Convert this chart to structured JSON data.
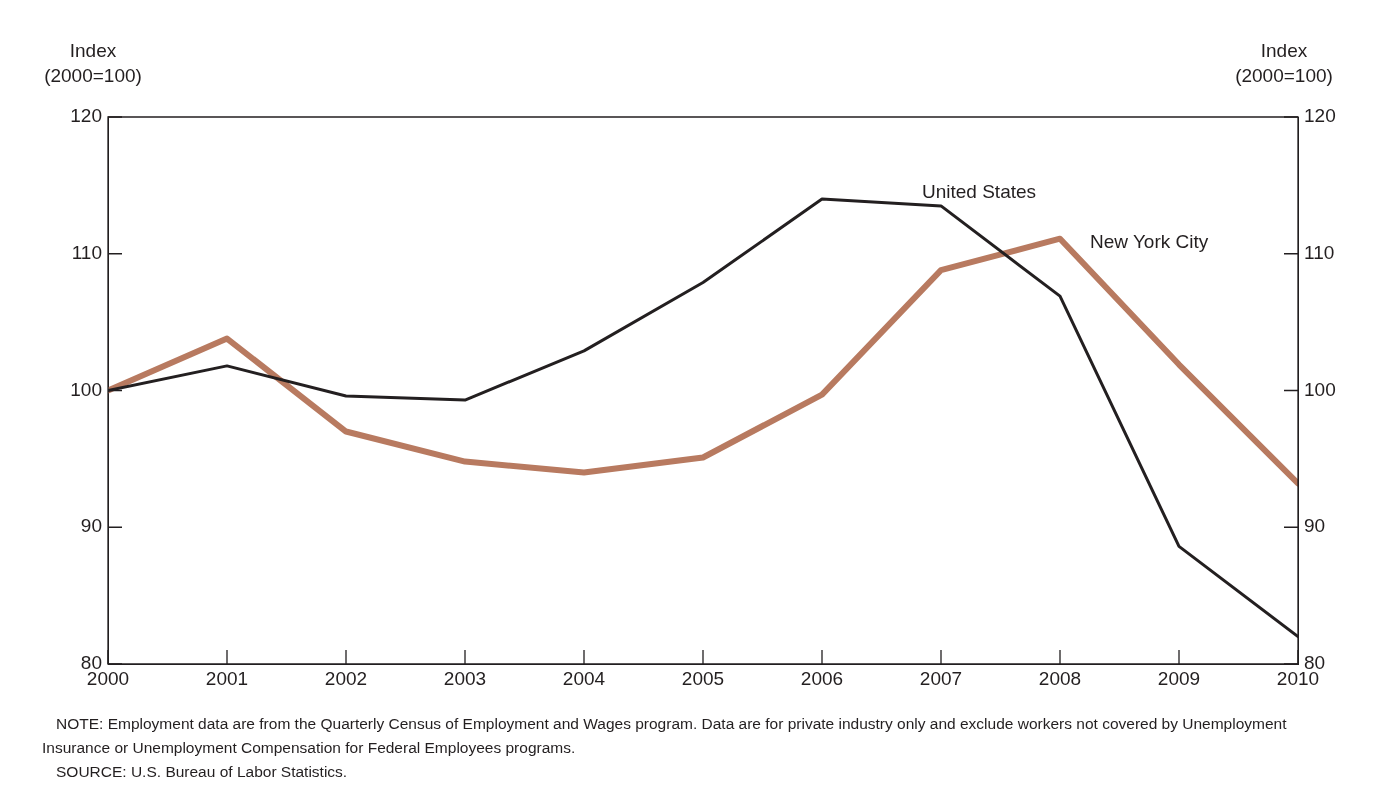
{
  "chart_data": {
    "type": "line",
    "ylabel": "Index\n(2000=100)",
    "y2label": "Index\n(2000=100)",
    "x": [
      2000,
      2001,
      2002,
      2003,
      2004,
      2005,
      2006,
      2007,
      2008,
      2009,
      2010
    ],
    "xlim": [
      2000,
      2010
    ],
    "xticks": [
      2000,
      2001,
      2002,
      2003,
      2004,
      2005,
      2006,
      2007,
      2008,
      2009,
      2010
    ],
    "ylim": [
      80,
      120
    ],
    "yticks": [
      80,
      90,
      100,
      110,
      120
    ],
    "y2lim": [
      80,
      120
    ],
    "y2ticks": [
      80,
      90,
      100,
      110,
      120
    ],
    "grid": false,
    "legend": false,
    "marker": "none",
    "line_style": "solid",
    "series": [
      {
        "name": "United States",
        "color": "#231f20",
        "values": [
          100,
          101.8,
          99.6,
          99.3,
          102.9,
          107.9,
          114.0,
          113.5,
          106.9,
          88.6,
          82.0
        ]
      },
      {
        "name": "New York City",
        "color": "#b87a60",
        "values": [
          100,
          103.8,
          97.0,
          94.8,
          94.0,
          95.1,
          99.7,
          108.8,
          111.1,
          101.9,
          93.2
        ]
      }
    ],
    "annotations": [
      "NOTE:    Employment data are from the Quarterly Census of Employment and Wages program. Data are for private industry only and exclude workers not covered by Unemployment Insurance or Unemployment Compensation for Federal Employees programs.",
      "SOURCE:    U.S. Bureau of Labor Statistics."
    ]
  }
}
